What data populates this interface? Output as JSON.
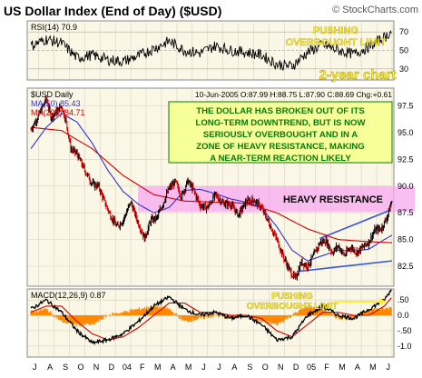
{
  "header": {
    "title": "US Dollar Index (End of Day) ($USD)",
    "copyright": "© StockCharts.com"
  },
  "colors": {
    "panel_bg": "#fbf7e6",
    "price_up": "#000000",
    "price_down": "#d00000",
    "ma50": "#3333cc",
    "ma200": "#cc0000",
    "resistance_band": "#f7a8f0",
    "channel": "#3355dd",
    "callout_text": "#ffee33",
    "annotation_box_fill": "#f7ff99",
    "annotation_box_border": "#0a7a0a",
    "annotation_text": "#0a7a0a",
    "macd_line": "#000000",
    "macd_signal": "#cc0000",
    "macd_hist": "#ff8800"
  },
  "rsi_panel": {
    "label": "RSI(14) 70.9",
    "ticks": [
      "70",
      "50",
      "30"
    ],
    "callout": [
      "PUSHING",
      "OVERBOUGHT LIMIT"
    ],
    "chart_label": "2-year chart"
  },
  "price_panel": {
    "ticker_label": "$USD Daily",
    "ma50_label": "MA(50) 85.43",
    "ma200_label": "MA(200) 84.71",
    "quote": "10-Jun-2005 O:87.99 H:88.75 L:87.90 C:88.69 Chg:+0.61",
    "ticks": [
      "97.5",
      "95.0",
      "92.5",
      "90.0",
      "87.5",
      "85.0",
      "82.5"
    ],
    "resistance_label": "HEAVY RESISTANCE",
    "annotation": [
      "THE DOLLAR HAS BROKEN OUT OF ITS",
      "LONG-TERM DOWNTREND, BUT IS NOW",
      "SERIOUSLY OVERBOUGHT AND IN A",
      "ZONE OF HEAVY RESISTANCE, MAKING",
      "A NEAR-TERM REACTION LIKELY"
    ]
  },
  "macd_panel": {
    "label": "MACD(12,26,9) 0.87",
    "ticks": [
      ".50",
      "0.0",
      "-.50",
      "-1.0"
    ],
    "callout": [
      "PUSHING",
      "OVERBOUGHT LIMIT"
    ]
  },
  "x_axis": {
    "labels": [
      "J",
      "A",
      "S",
      "O",
      "N",
      "D",
      "04",
      "F",
      "M",
      "A",
      "M",
      "J",
      "J",
      "A",
      "S",
      "O",
      "N",
      "D",
      "05",
      "F",
      "M",
      "A",
      "M",
      "J"
    ]
  },
  "chart_data": {
    "type": "line",
    "title": "US Dollar Index (End of Day) ($USD)",
    "x_categories": [
      "J",
      "A",
      "S",
      "O",
      "N",
      "D",
      "04",
      "F",
      "M",
      "A",
      "M",
      "J",
      "J",
      "A",
      "S",
      "O",
      "N",
      "D",
      "05",
      "F",
      "M",
      "A",
      "M",
      "J"
    ],
    "price": {
      "ylim": [
        80.8,
        99.0
      ],
      "keypoints_month_index": [
        0,
        0.5,
        1,
        1.3,
        1.7,
        2.0,
        2.3,
        2.6,
        3.0,
        3.5,
        4.0,
        4.4,
        4.8,
        5.2,
        5.6,
        6.0,
        6.5,
        7.0,
        7.4,
        7.8,
        8.2,
        8.6,
        9.0,
        9.4,
        9.8,
        10.2,
        10.6,
        11.0,
        11.5,
        12.0,
        12.5,
        13.0,
        13.5,
        14.0,
        14.5,
        15.0,
        15.5,
        16.0,
        16.4,
        16.8,
        17.2,
        17.6,
        18.0,
        18.4,
        18.8,
        19.2,
        19.6,
        20.0,
        20.4,
        20.8,
        21.2,
        21.6,
        22.0,
        22.4,
        22.8,
        23.2,
        23.5
      ],
      "keypoints_close": [
        95.3,
        96.6,
        98.2,
        96.5,
        97.0,
        97.5,
        96.0,
        93.5,
        93.0,
        91.5,
        90.2,
        90.0,
        88.5,
        87.2,
        86.2,
        86.8,
        88.5,
        86.5,
        85.1,
        86.8,
        87.0,
        88.4,
        89.8,
        90.4,
        89.0,
        90.5,
        89.6,
        88.2,
        88.0,
        89.2,
        88.4,
        88.3,
        87.3,
        88.5,
        88.7,
        88.0,
        86.5,
        85.0,
        83.5,
        82.2,
        81.3,
        82.9,
        82.5,
        83.5,
        84.7,
        84.9,
        83.8,
        84.4,
        83.5,
        84.3,
        83.8,
        84.3,
        84.8,
        85.9,
        86.0,
        87.2,
        88.7
      ],
      "ma50_month_index": [
        0,
        1,
        2,
        3,
        4,
        5,
        6,
        7,
        8,
        9,
        10,
        11,
        12,
        13,
        14,
        15,
        16,
        17,
        18,
        19,
        20,
        21,
        22,
        23,
        23.5
      ],
      "ma50": [
        93.5,
        95.5,
        96.8,
        96.0,
        94.0,
        91.5,
        89.5,
        88.3,
        87.5,
        88.0,
        89.6,
        89.7,
        89.3,
        88.8,
        88.5,
        88.0,
        86.2,
        84.0,
        83.0,
        83.5,
        84.0,
        83.9,
        84.1,
        85.0,
        85.4
      ],
      "ma200_month_index": [
        0,
        2,
        4,
        6,
        8,
        10,
        12,
        14,
        16,
        18,
        20,
        22,
        23.5
      ],
      "ma200": [
        95.5,
        95.2,
        93.5,
        91.0,
        89.2,
        88.6,
        88.5,
        88.4,
        87.5,
        86.0,
        85.0,
        84.8,
        84.7
      ],
      "resistance_zone": [
        87.6,
        90.0
      ],
      "last": {
        "date": "10-Jun-2005",
        "open": 87.99,
        "high": 88.75,
        "low": 87.9,
        "close": 88.69,
        "change": 0.61
      },
      "ma50_last": 85.43,
      "ma200_last": 84.71
    },
    "rsi": {
      "ylim": [
        20,
        80
      ],
      "last": 70.9,
      "month_index": [
        0,
        1,
        2,
        3,
        4,
        5,
        6,
        7,
        8,
        9,
        10,
        11,
        12,
        13,
        14,
        15,
        16,
        17,
        18,
        19,
        20,
        21,
        22,
        23,
        23.5
      ],
      "values": [
        55,
        62,
        58,
        42,
        45,
        40,
        38,
        44,
        52,
        60,
        50,
        47,
        55,
        50,
        48,
        45,
        35,
        33,
        48,
        56,
        50,
        46,
        54,
        64,
        70.9
      ]
    },
    "macd": {
      "ylim": [
        -1.3,
        0.8
      ],
      "last": 0.87,
      "month_index": [
        0,
        1,
        2,
        3,
        4,
        5,
        6,
        7,
        8,
        9,
        10,
        11,
        12,
        13,
        14,
        15,
        16,
        17,
        18,
        19,
        20,
        21,
        22,
        23,
        23.5
      ],
      "macd": [
        0.2,
        0.5,
        0.1,
        -0.5,
        -0.9,
        -0.8,
        -0.6,
        -0.2,
        0.3,
        0.6,
        0.2,
        0.0,
        0.1,
        -0.1,
        0.0,
        -0.3,
        -0.8,
        -0.7,
        0.0,
        0.3,
        0.0,
        -0.1,
        0.2,
        0.5,
        0.87
      ],
      "signal": [
        0.1,
        0.3,
        0.3,
        -0.2,
        -0.6,
        -0.8,
        -0.7,
        -0.4,
        0.0,
        0.4,
        0.4,
        0.1,
        0.1,
        0.0,
        0.0,
        -0.1,
        -0.5,
        -0.7,
        -0.3,
        0.1,
        0.1,
        0.0,
        0.0,
        0.3,
        0.6
      ]
    }
  }
}
